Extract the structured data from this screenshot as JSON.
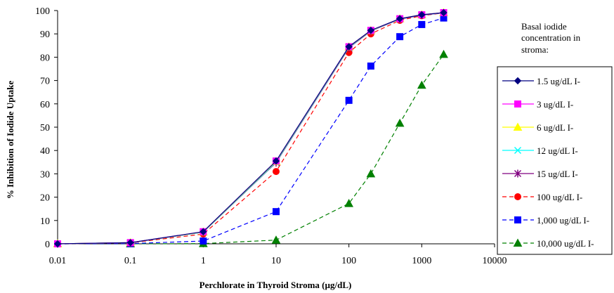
{
  "chart_data": {
    "type": "line",
    "xlabel": "Perchlorate in Thyroid Stroma (µg/dL)",
    "ylabel": "% Inhibition of Iodide Uptake",
    "x_scale": "log",
    "xlim": [
      0.01,
      10000
    ],
    "ylim": [
      0,
      100
    ],
    "x_ticks": [
      "0.01",
      "0.1",
      "1",
      "10",
      "100",
      "1000",
      "10000"
    ],
    "y_ticks": [
      "0",
      "10",
      "20",
      "30",
      "40",
      "50",
      "60",
      "70",
      "80",
      "90",
      "100"
    ],
    "grid": false,
    "legend_title": [
      "Basal iodide",
      "concentration in",
      "stroma:"
    ],
    "legend_position": "right",
    "series": [
      {
        "name": "1.5 ug/dL I-",
        "color": "#000080",
        "marker": "diamond",
        "dashed": false,
        "x": [
          0.01,
          0.1,
          1,
          10,
          100,
          200,
          500,
          1000,
          2000
        ],
        "y": [
          0,
          0.5,
          5.2,
          35.5,
          84.5,
          91.5,
          96.5,
          98.2,
          99.1
        ]
      },
      {
        "name": "3 ug/dL I-",
        "color": "#ff00ff",
        "marker": "square",
        "dashed": false,
        "x": [
          0.01,
          0.1,
          1,
          10,
          100,
          200,
          500,
          1000,
          2000
        ],
        "y": [
          0,
          0.5,
          5.2,
          35.5,
          84.5,
          91.5,
          96.5,
          98.2,
          99.1
        ]
      },
      {
        "name": "6 ug/dL I-",
        "color": "#ffff00",
        "marker": "triangle",
        "dashed": false,
        "x": [
          0.01,
          0.1,
          1,
          10,
          100,
          200,
          500,
          1000,
          2000
        ],
        "y": [
          0,
          0.5,
          5.1,
          35.3,
          84.4,
          91.4,
          96.5,
          98.2,
          99.1
        ]
      },
      {
        "name": "12 ug/dL I-",
        "color": "#00ffff",
        "marker": "x",
        "dashed": false,
        "x": [
          0.01,
          0.1,
          1,
          10,
          100,
          200,
          500,
          1000,
          2000
        ],
        "y": [
          0,
          0.5,
          5.0,
          35.0,
          84.2,
          91.3,
          96.4,
          98.1,
          99.0
        ]
      },
      {
        "name": "15 ug/dL I-",
        "color": "#800080",
        "marker": "star",
        "dashed": false,
        "x": [
          0.01,
          0.1,
          1,
          10,
          100,
          200,
          500,
          1000,
          2000
        ],
        "y": [
          0,
          0.5,
          5.0,
          34.8,
          84.0,
          91.2,
          96.3,
          98.0,
          99.0
        ]
      },
      {
        "name": "100 ug/dL I-",
        "color": "#ff0000",
        "marker": "circle",
        "dashed": true,
        "x": [
          0.01,
          0.1,
          1,
          10,
          100,
          200,
          500,
          1000,
          2000
        ],
        "y": [
          0,
          0.4,
          4.2,
          31.0,
          82.0,
          90.0,
          95.8,
          97.8,
          99.0
        ]
      },
      {
        "name": "1,000 ug/dL I-",
        "color": "#0000ff",
        "marker": "square",
        "dashed": true,
        "x": [
          0.01,
          0.1,
          1,
          10,
          100,
          200,
          500,
          1000,
          2000
        ],
        "y": [
          0,
          0.1,
          1.2,
          13.8,
          61.5,
          76.2,
          88.8,
          94.0,
          96.8
        ]
      },
      {
        "name": "10,000 ug/dL I-",
        "color": "#008000",
        "marker": "triangle",
        "dashed": true,
        "x": [
          0.01,
          0.1,
          1,
          10,
          100,
          200,
          500,
          1000,
          2000
        ],
        "y": [
          0,
          0,
          0.1,
          1.6,
          17.3,
          30.0,
          51.7,
          68.0,
          81.2
        ]
      }
    ]
  }
}
